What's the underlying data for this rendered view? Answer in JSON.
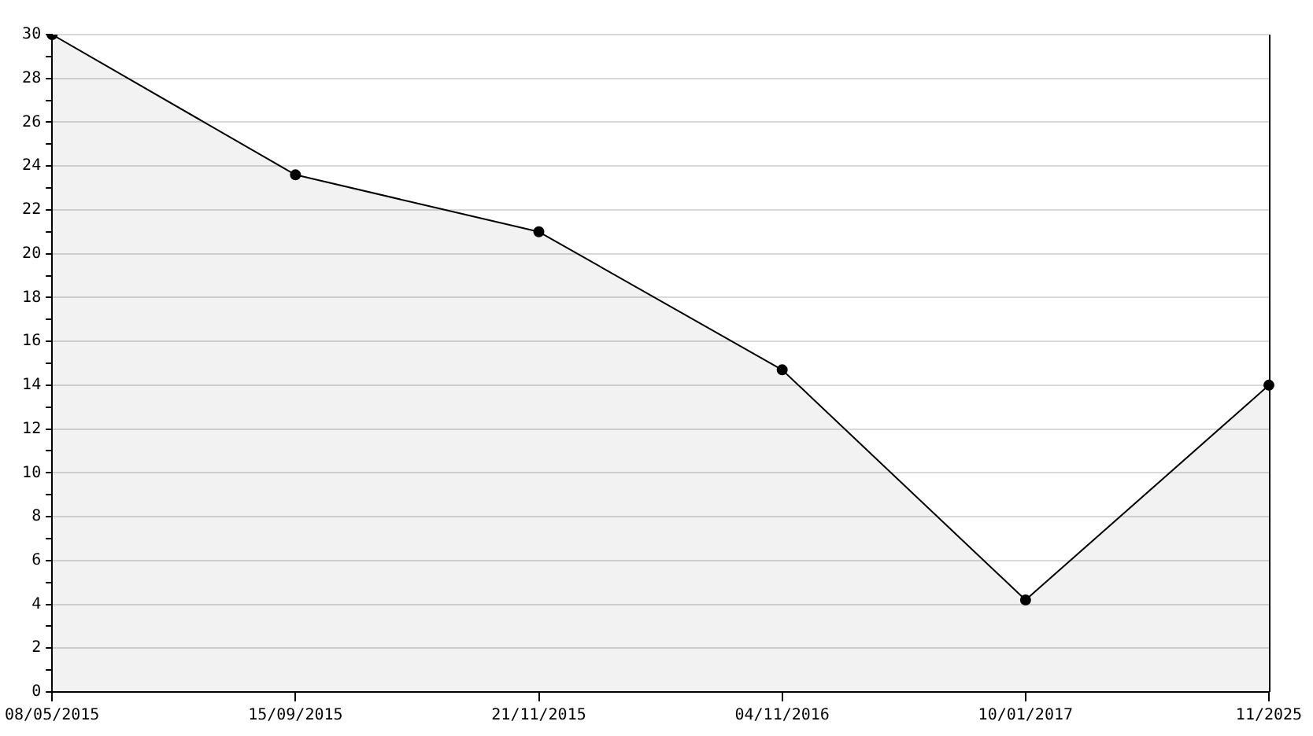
{
  "chart_data": {
    "type": "area",
    "categories": [
      "08/05/2015",
      "15/09/2015",
      "21/11/2015",
      "04/11/2016",
      "10/01/2017",
      "11/2025"
    ],
    "series": [
      {
        "color": "#000000",
        "values": [
          30,
          23.6,
          21,
          14.7,
          4.2,
          14
        ]
      }
    ],
    "ylim": [
      0,
      30
    ],
    "yticks": [
      0,
      {
        "value": 1,
        "label": null
      },
      2,
      {
        "value": 3,
        "label": null
      },
      4,
      {
        "value": 5,
        "label": null
      },
      6,
      {
        "value": 7,
        "label": null
      },
      8,
      {
        "value": 9,
        "label": null
      },
      10,
      {
        "value": 11,
        "label": null
      },
      12,
      {
        "value": 13,
        "label": null
      },
      14,
      {
        "value": 15,
        "label": null
      },
      16,
      {
        "value": 17,
        "label": null
      },
      18,
      {
        "value": 19,
        "label": null
      },
      20,
      {
        "value": 21,
        "label": null
      },
      22,
      {
        "value": 23,
        "label": null
      },
      24,
      {
        "value": 25,
        "label": null
      },
      26,
      {
        "value": 27,
        "label": null
      },
      28,
      {
        "value": 29,
        "label": null
      },
      30
    ],
    "grid": "y",
    "marker": "circle",
    "line_style": "solid",
    "legend": false
  }
}
